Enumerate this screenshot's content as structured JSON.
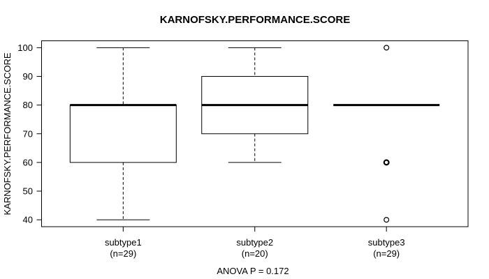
{
  "colors": {
    "foreground": "#000000",
    "background": "#ffffff"
  },
  "chart_data": {
    "type": "boxplot",
    "title": "KARNOFSKY.PERFORMANCE.SCORE",
    "ylabel": "KARNOFSKY.PERFORMANCE.SCORE",
    "xlabel": "",
    "annotation": "ANOVA P = 0.172",
    "ylim": [
      37.6,
      102.4
    ],
    "yticks": [
      40,
      50,
      60,
      70,
      80,
      90,
      100
    ],
    "grid": false,
    "legend": "none",
    "groups": [
      {
        "label": "subtype1",
        "sublabel": "(n=29)",
        "n": 29,
        "whisker_low": 40,
        "q1": 60,
        "median": 80,
        "q3": 80,
        "whisker_high": 100,
        "outliers": [],
        "emphasized_outliers": []
      },
      {
        "label": "subtype2",
        "sublabel": "(n=20)",
        "n": 20,
        "whisker_low": 60,
        "q1": 70,
        "median": 80,
        "q3": 90,
        "whisker_high": 100,
        "outliers": [],
        "emphasized_outliers": []
      },
      {
        "label": "subtype3",
        "sublabel": "(n=29)",
        "n": 29,
        "whisker_low": 80,
        "q1": 80,
        "median": 80,
        "q3": 80,
        "whisker_high": 80,
        "outliers": [
          100,
          60,
          40
        ],
        "emphasized_outliers": [
          60
        ]
      }
    ]
  }
}
